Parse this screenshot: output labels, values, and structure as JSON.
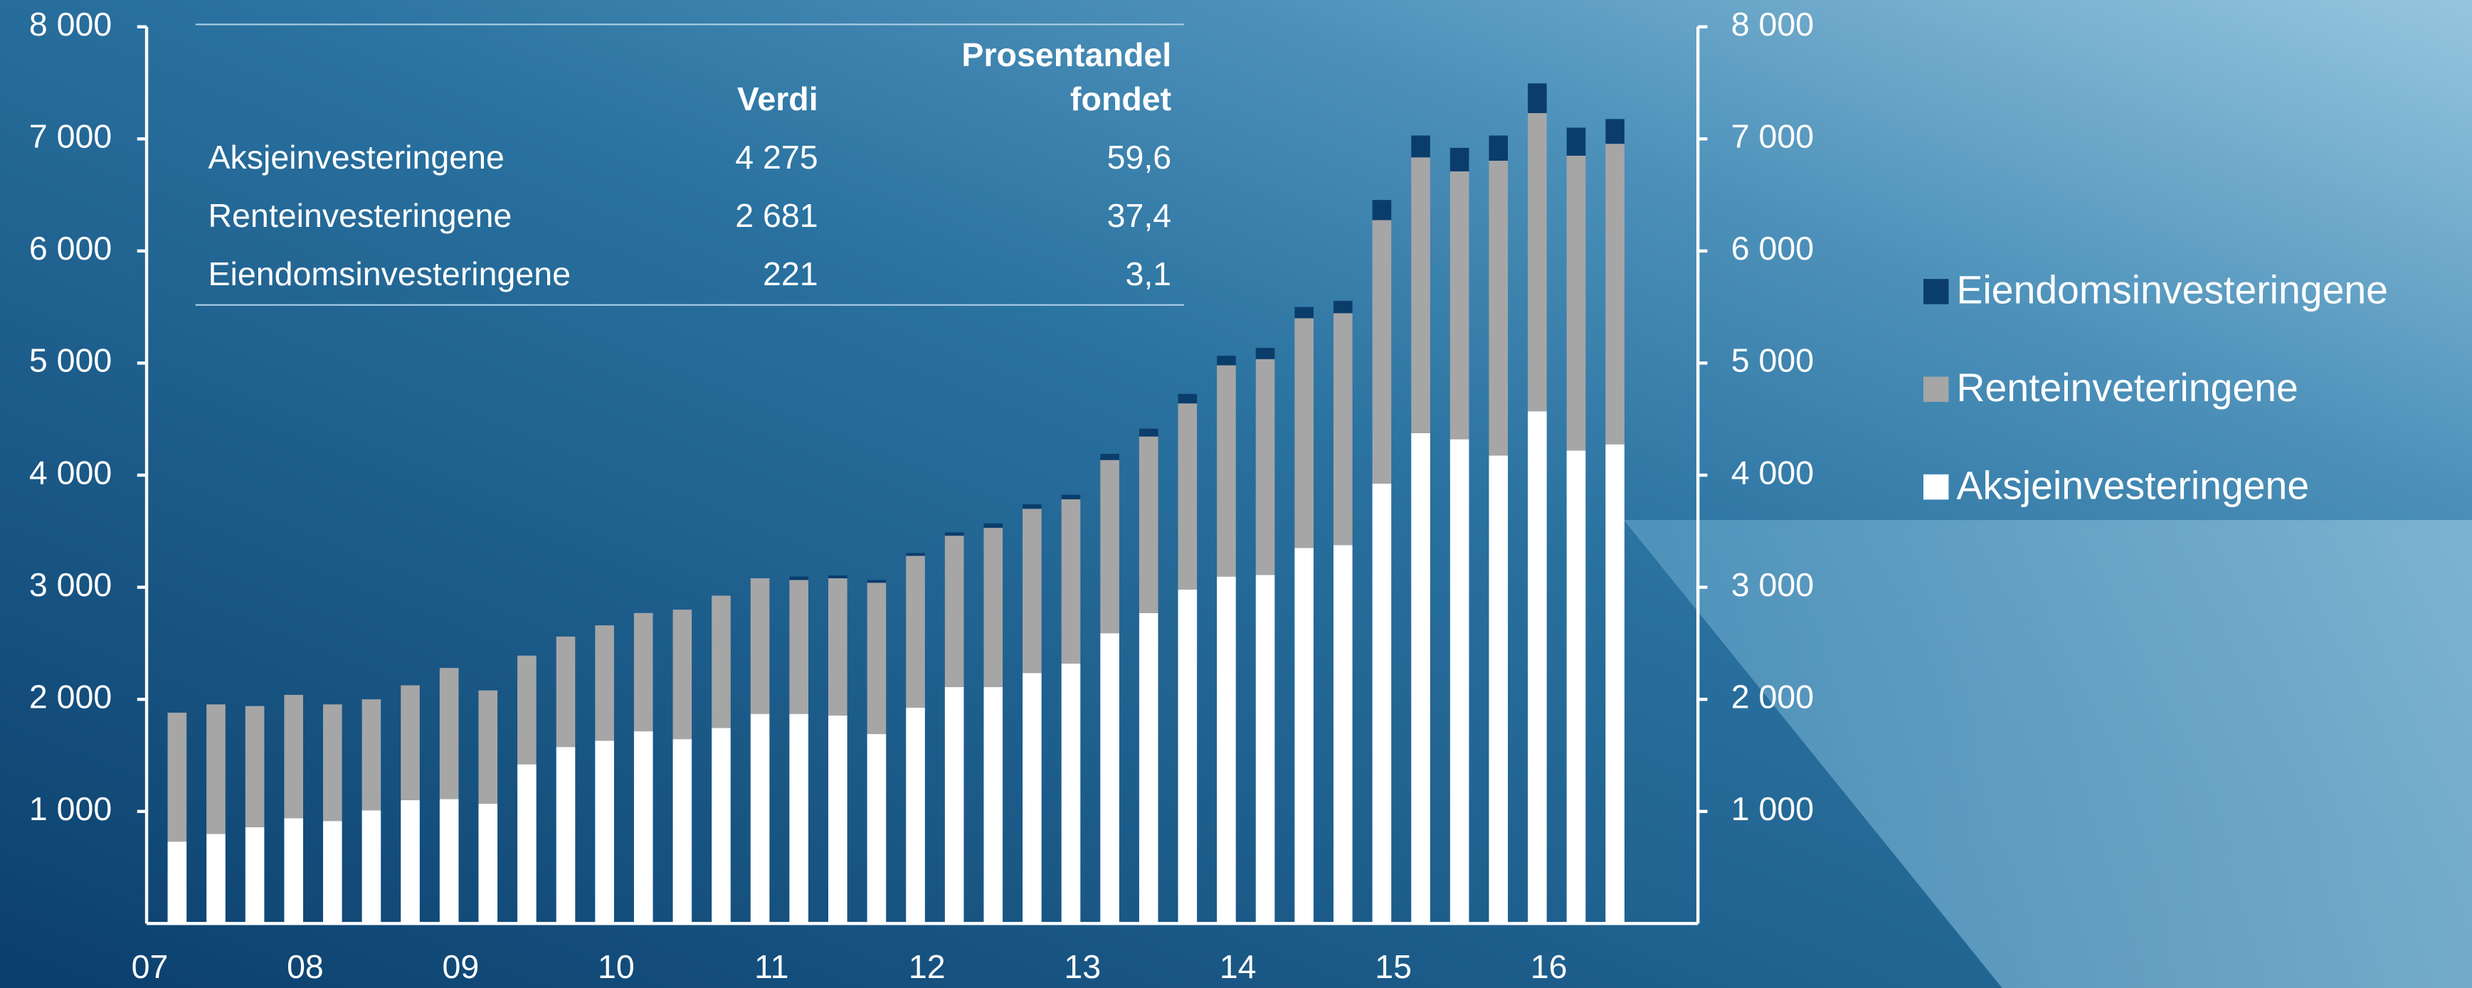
{
  "chart_data": {
    "type": "stacked_bar",
    "categories": [
      "07",
      null,
      null,
      null,
      "08",
      null,
      null,
      null,
      "09",
      null,
      null,
      null,
      "10",
      null,
      null,
      null,
      "11",
      null,
      null,
      null,
      "12",
      null,
      null,
      null,
      "13",
      null,
      null,
      null,
      "14",
      null,
      null,
      null,
      "15",
      null,
      null,
      null,
      "16",
      null
    ],
    "series": [
      {
        "name": "Aksjeinvesteringene",
        "color": "#ffffff",
        "values": [
          731,
          800,
          860,
          940,
          915,
          1010,
          1100,
          1110,
          1070,
          1420,
          1575,
          1630,
          1715,
          1645,
          1745,
          1870,
          1870,
          1855,
          1690,
          1925,
          2110,
          2110,
          2235,
          2320,
          2590,
          2770,
          2980,
          3095,
          3110,
          3350,
          3375,
          3925,
          4375,
          4320,
          4175,
          4570,
          4220,
          4275
        ]
      },
      {
        "name": "Renteinveteringene",
        "color": "#a6a6a6",
        "values": [
          1150,
          1155,
          1080,
          1100,
          1040,
          990,
          1025,
          1170,
          1010,
          970,
          985,
          1030,
          1055,
          1155,
          1180,
          1210,
          1195,
          1225,
          1350,
          1355,
          1350,
          1420,
          1465,
          1465,
          1545,
          1575,
          1660,
          1885,
          1925,
          2050,
          2070,
          2350,
          2460,
          2390,
          2630,
          2660,
          2630,
          2681
        ]
      },
      {
        "name": "Eiendomsinvesteringene",
        "color": "#0b3d6b",
        "values": [
          0,
          0,
          0,
          0,
          0,
          0,
          0,
          0,
          0,
          0,
          0,
          0,
          0,
          0,
          0,
          0,
          30,
          25,
          25,
          25,
          30,
          40,
          40,
          40,
          55,
          70,
          85,
          85,
          100,
          100,
          110,
          180,
          195,
          210,
          225,
          265,
          250,
          221
        ]
      }
    ],
    "ylim": [
      0,
      8000
    ],
    "yticks": [
      {
        "value": 1000,
        "label": "1 000"
      },
      {
        "value": 2000,
        "label": "2 000"
      },
      {
        "value": 3000,
        "label": "3 000"
      },
      {
        "value": 4000,
        "label": "4 000"
      },
      {
        "value": 5000,
        "label": "5 000"
      },
      {
        "value": 6000,
        "label": "6 000"
      },
      {
        "value": 7000,
        "label": "7 000"
      },
      {
        "value": 8000,
        "label": "8 000"
      }
    ],
    "y2lim": [
      0,
      8000
    ],
    "y2ticks": [
      {
        "value": 1000,
        "label": "1 000"
      },
      {
        "value": 2000,
        "label": "2 000"
      },
      {
        "value": 3000,
        "label": "3 000"
      },
      {
        "value": 4000,
        "label": "4 000"
      },
      {
        "value": 5000,
        "label": "5 000"
      },
      {
        "value": 6000,
        "label": "6 000"
      },
      {
        "value": 7000,
        "label": "7 000"
      },
      {
        "value": 8000,
        "label": "8 000"
      }
    ],
    "legend": "right",
    "table": {
      "headers": [
        "Verdi",
        "Prosentandel fondet"
      ],
      "rows": [
        [
          "Aksjeinvesteringene",
          "4 275",
          "59,6"
        ],
        [
          "Renteinvesteringene",
          "2 681",
          "37,4"
        ],
        [
          "Eiendomsinvesteringene",
          "221",
          "3,1"
        ]
      ]
    }
  }
}
